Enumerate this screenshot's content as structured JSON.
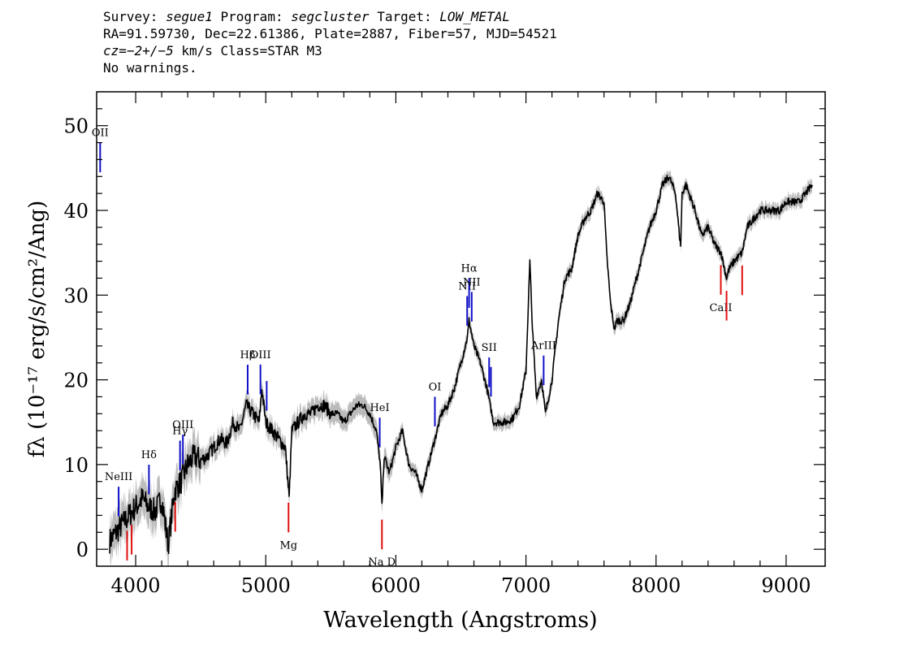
{
  "header": {
    "survey_label": "Survey:",
    "survey": "segue1",
    "program_label": "Program:",
    "program": "segcluster",
    "target_label": "Target:",
    "target": "LOW_METAL",
    "line2": "RA=91.59730, Dec=22.61386, Plate=2887, Fiber=57, MJD=54521",
    "cz_label": "cz",
    "cz_value": "=−2+/−5",
    "cz_unit": " km/s Class=STAR M3",
    "line4": "No warnings."
  },
  "chart_data": {
    "type": "line",
    "xlabel": "Wavelength (Angstroms)",
    "ylabel": "fλ (10⁻¹⁷ erg/s/cm²/Ang)",
    "xlim": [
      3700,
      9300
    ],
    "ylim": [
      -2,
      54
    ],
    "x_ticks": [
      4000,
      5000,
      6000,
      7000,
      8000,
      9000
    ],
    "y_ticks": [
      0,
      10,
      20,
      30,
      40,
      50
    ],
    "grid": false,
    "colors": {
      "flux": "#000000",
      "error_band": "#bbbbbb",
      "emission": "#1010c8",
      "absorption": "#e01010"
    },
    "spectrum": {
      "x": [
        3800,
        3850,
        3900,
        3950,
        4000,
        4050,
        4100,
        4150,
        4200,
        4250,
        4300,
        4350,
        4400,
        4450,
        4500,
        4550,
        4600,
        4650,
        4700,
        4750,
        4800,
        4850,
        4900,
        4950,
        4970,
        5000,
        5050,
        5100,
        5150,
        5180,
        5200,
        5250,
        5300,
        5350,
        5400,
        5450,
        5500,
        5550,
        5600,
        5650,
        5700,
        5750,
        5800,
        5850,
        5880,
        5893,
        5910,
        5950,
        6000,
        6050,
        6100,
        6150,
        6200,
        6250,
        6300,
        6350,
        6400,
        6450,
        6500,
        6550,
        6563,
        6600,
        6650,
        6700,
        6750,
        6800,
        6850,
        6900,
        6950,
        7000,
        7030,
        7050,
        7080,
        7120,
        7150,
        7200,
        7250,
        7300,
        7350,
        7400,
        7450,
        7500,
        7550,
        7600,
        7620,
        7650,
        7680,
        7700,
        7750,
        7800,
        7850,
        7900,
        7950,
        8000,
        8050,
        8100,
        8150,
        8180,
        8190,
        8200,
        8230,
        8300,
        8350,
        8400,
        8450,
        8500,
        8542,
        8560,
        8600,
        8662,
        8700,
        8750,
        8800,
        8850,
        8900,
        8950,
        9000,
        9050,
        9100,
        9150,
        9200
      ],
      "y": [
        1,
        2,
        3,
        4,
        5,
        6,
        5,
        4.5,
        6,
        0.5,
        7,
        8,
        10,
        11,
        10.5,
        11,
        12,
        13,
        12.5,
        15,
        14,
        17,
        16,
        15,
        19,
        15,
        14,
        13,
        12,
        6,
        14,
        15,
        16,
        16,
        17,
        17,
        16,
        16,
        15,
        16,
        17,
        17,
        16,
        14,
        10,
        5,
        11,
        9,
        12,
        14,
        10,
        9,
        7,
        10,
        13,
        16,
        17,
        19,
        22,
        25,
        27,
        24,
        22,
        19,
        15,
        15,
        15,
        15.5,
        17,
        21,
        34,
        26,
        18,
        20,
        16,
        20,
        27,
        32,
        33,
        37,
        39,
        40,
        42,
        41,
        35,
        29,
        26,
        27,
        27,
        29,
        32,
        35,
        38,
        40,
        43,
        44,
        42,
        37,
        36,
        42,
        43,
        40,
        37,
        38,
        36,
        35,
        32,
        33,
        34,
        35,
        38,
        39,
        40,
        40,
        40,
        40,
        41,
        41,
        41,
        42,
        43
      ]
    },
    "lines": [
      {
        "label": "OII",
        "x": 3727,
        "kind": "emission"
      },
      {
        "label": "NeIII",
        "x": 3869,
        "kind": "emission"
      },
      {
        "label": "Hδ",
        "x": 4102,
        "kind": "emission"
      },
      {
        "label": "Hγ",
        "x": 4341,
        "kind": "emission"
      },
      {
        "label": "OIII",
        "x": 4363,
        "kind": "emission"
      },
      {
        "label": "Hβ",
        "x": 4861,
        "kind": "emission"
      },
      {
        "label": "OIII",
        "x": 4959,
        "kind": "emission"
      },
      {
        "label": "",
        "x": 5007,
        "kind": "emission"
      },
      {
        "label": "HeI",
        "x": 5876,
        "kind": "emission"
      },
      {
        "label": "OI",
        "x": 6300,
        "kind": "emission"
      },
      {
        "label": "NII",
        "x": 6548,
        "kind": "emission"
      },
      {
        "label": "Hα",
        "x": 6563,
        "kind": "emission"
      },
      {
        "label": "NII",
        "x": 6583,
        "kind": "emission"
      },
      {
        "label": "SII",
        "x": 6717,
        "kind": "emission"
      },
      {
        "label": "",
        "x": 6731,
        "kind": "emission"
      },
      {
        "label": "ArIII",
        "x": 7136,
        "kind": "emission"
      },
      {
        "label": "Mg",
        "x": 5175,
        "kind": "absorption"
      },
      {
        "label": "Na D",
        "x": 5893,
        "kind": "absorption"
      },
      {
        "label": "CaII",
        "x": 8498,
        "kind": "absorption"
      },
      {
        "label": "",
        "x": 8542,
        "kind": "absorption"
      },
      {
        "label": "",
        "x": 8662,
        "kind": "absorption"
      },
      {
        "label": "",
        "x": 3934,
        "kind": "absorption"
      },
      {
        "label": "",
        "x": 3969,
        "kind": "absorption"
      },
      {
        "label": "",
        "x": 4304,
        "kind": "absorption"
      }
    ]
  }
}
